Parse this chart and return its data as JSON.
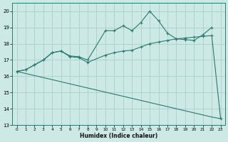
{
  "xlabel": "Humidex (Indice chaleur)",
  "bg_color": "#cce9e5",
  "grid_color": "#aacfcb",
  "line_color": "#2a7a6e",
  "xlim": [
    -0.5,
    23.5
  ],
  "ylim": [
    13,
    20.5
  ],
  "yticks": [
    13,
    14,
    15,
    16,
    17,
    18,
    19,
    20
  ],
  "xticks": [
    0,
    1,
    2,
    3,
    4,
    5,
    6,
    7,
    8,
    9,
    10,
    11,
    12,
    13,
    14,
    15,
    16,
    17,
    18,
    19,
    20,
    21,
    22,
    23
  ],
  "series1_x": [
    0,
    1,
    2,
    3,
    4,
    5,
    6,
    7,
    8,
    10,
    11,
    12,
    13,
    14,
    15,
    16,
    17,
    18,
    19,
    20,
    21,
    22
  ],
  "series1_y": [
    16.3,
    16.4,
    16.7,
    17.0,
    17.45,
    17.55,
    17.25,
    17.2,
    17.0,
    18.8,
    18.8,
    19.1,
    18.8,
    19.3,
    20.0,
    19.4,
    18.65,
    18.3,
    18.25,
    18.2,
    18.55,
    19.0
  ],
  "series2_x": [
    0,
    1,
    2,
    3,
    4,
    5,
    6,
    7,
    8,
    10,
    11,
    12,
    13,
    14,
    15,
    16,
    17,
    18,
    19,
    20,
    21,
    22,
    23
  ],
  "series2_y": [
    16.3,
    16.4,
    16.7,
    17.0,
    17.45,
    17.55,
    17.2,
    17.15,
    16.85,
    17.3,
    17.45,
    17.55,
    17.6,
    17.8,
    18.0,
    18.1,
    18.2,
    18.3,
    18.35,
    18.4,
    18.45,
    18.5,
    13.4
  ],
  "series3_x": [
    0,
    22,
    23
  ],
  "series3_y": [
    16.3,
    13.5,
    13.4
  ]
}
